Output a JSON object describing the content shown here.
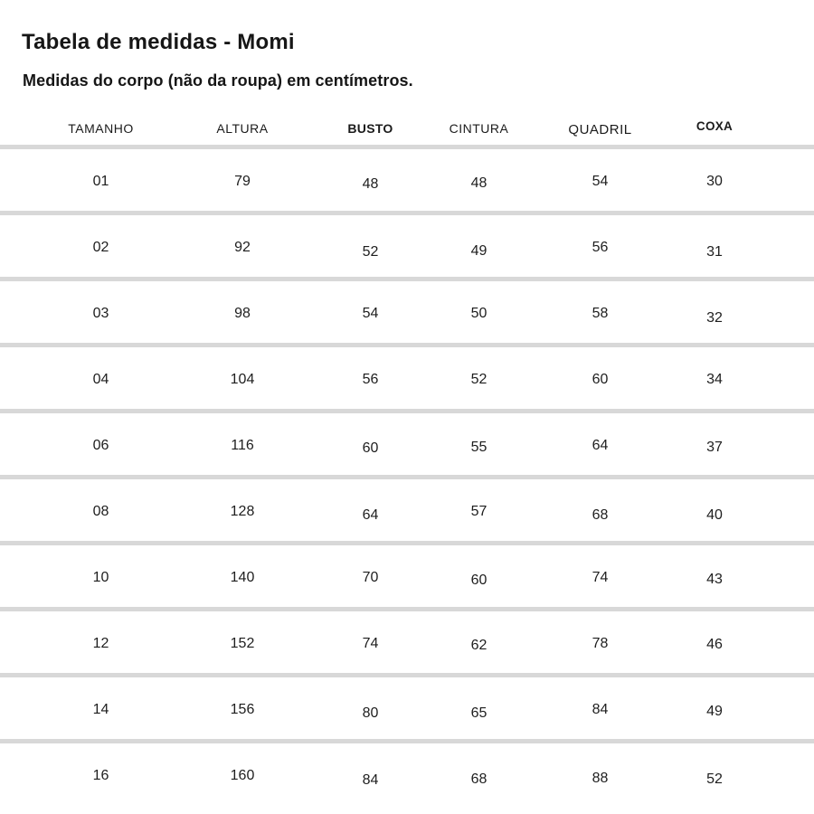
{
  "page": {
    "title": "Tabela de medidas - Momi",
    "subtitle": "Medidas do corpo (não da roupa) em centímetros."
  },
  "table": {
    "columns": [
      "TAMANHO",
      "ALTURA",
      "BUSTO",
      "CINTURA",
      "QUADRIL",
      "COXA"
    ],
    "bold_columns": [
      "BUSTO",
      "COXA"
    ],
    "unit": "cm",
    "rows": [
      [
        "01",
        "79",
        "48",
        "48",
        "54",
        "30"
      ],
      [
        "02",
        "92",
        "52",
        "49",
        "56",
        "31"
      ],
      [
        "03",
        "98",
        "54",
        "50",
        "58",
        "32"
      ],
      [
        "04",
        "104",
        "56",
        "52",
        "60",
        "34"
      ],
      [
        "06",
        "116",
        "60",
        "55",
        "64",
        "37"
      ],
      [
        "08",
        "128",
        "64",
        "57",
        "68",
        "40"
      ],
      [
        "10",
        "140",
        "70",
        "60",
        "74",
        "43"
      ],
      [
        "12",
        "152",
        "74",
        "62",
        "78",
        "46"
      ],
      [
        "14",
        "156",
        "80",
        "65",
        "84",
        "49"
      ],
      [
        "16",
        "160",
        "84",
        "68",
        "88",
        "52"
      ]
    ]
  },
  "colors": {
    "background": "#ffffff",
    "text": "#1e1e1e",
    "separator": "#d8d8d8"
  }
}
